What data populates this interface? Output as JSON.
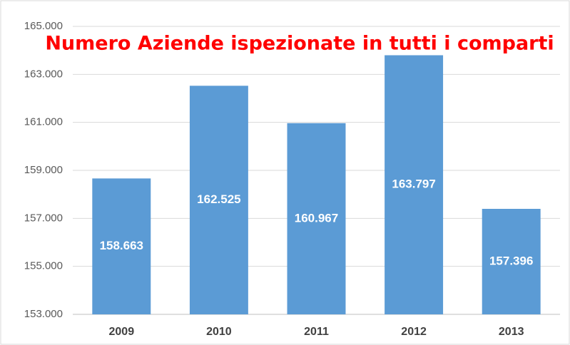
{
  "chart_data": {
    "type": "bar",
    "title": "Numero Aziende ispezionate in tutti i comparti",
    "categories": [
      "2009",
      "2010",
      "2011",
      "2012",
      "2013"
    ],
    "values": [
      158663,
      162525,
      160967,
      163797,
      157396
    ],
    "value_labels": [
      "158.663",
      "162.525",
      "160.967",
      "163.797",
      "157.396"
    ],
    "color": "#5b9bd5",
    "ylim": [
      153000,
      165000
    ],
    "yticks": [
      {
        "value": 153000,
        "label": "153.000"
      },
      {
        "value": 155000,
        "label": "155.000"
      },
      {
        "value": 157000,
        "label": "157.000"
      },
      {
        "value": 159000,
        "label": "159.000"
      },
      {
        "value": 161000,
        "label": "161.000"
      },
      {
        "value": 163000,
        "label": "163.000"
      },
      {
        "value": 165000,
        "label": "165.000"
      }
    ],
    "grid": true
  }
}
